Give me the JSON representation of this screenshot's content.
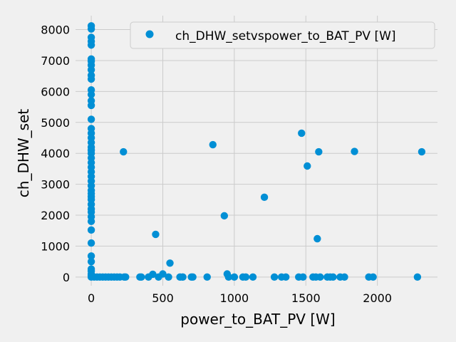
{
  "chart_data": {
    "type": "scatter",
    "title": "",
    "xlabel": "power_to_BAT_PV [W]",
    "ylabel": "ch_DHW_set",
    "xlim": [
      -110,
      2420
    ],
    "ylim": [
      -280,
      8450
    ],
    "xticks": [
      0,
      500,
      1000,
      1500,
      2000
    ],
    "yticks": [
      0,
      1000,
      2000,
      3000,
      4000,
      5000,
      6000,
      7000,
      8000
    ],
    "grid": true,
    "legend_position": "top-right",
    "series": [
      {
        "name": "ch_DHW_setvspower_to_BAT_PV [W]",
        "color": "#008fd5",
        "points": [
          [
            0,
            8120
          ],
          [
            0,
            8020
          ],
          [
            0,
            7750
          ],
          [
            0,
            7620
          ],
          [
            0,
            7500
          ],
          [
            0,
            7050
          ],
          [
            0,
            6980
          ],
          [
            0,
            6850
          ],
          [
            0,
            6700
          ],
          [
            0,
            6520
          ],
          [
            0,
            6400
          ],
          [
            0,
            6050
          ],
          [
            0,
            5900
          ],
          [
            0,
            5700
          ],
          [
            0,
            5550
          ],
          [
            0,
            5100
          ],
          [
            0,
            4800
          ],
          [
            0,
            4650
          ],
          [
            0,
            4500
          ],
          [
            0,
            4350
          ],
          [
            0,
            4200
          ],
          [
            0,
            4100
          ],
          [
            0,
            4000
          ],
          [
            0,
            3850
          ],
          [
            0,
            3700
          ],
          [
            0,
            3550
          ],
          [
            0,
            3400
          ],
          [
            0,
            3250
          ],
          [
            0,
            3100
          ],
          [
            0,
            2950
          ],
          [
            0,
            2800
          ],
          [
            0,
            2700
          ],
          [
            0,
            2600
          ],
          [
            0,
            2500
          ],
          [
            0,
            2350
          ],
          [
            0,
            2200
          ],
          [
            0,
            2100
          ],
          [
            0,
            1950
          ],
          [
            0,
            1800
          ],
          [
            0,
            1520
          ],
          [
            0,
            1100
          ],
          [
            0,
            680
          ],
          [
            0,
            500
          ],
          [
            0,
            260
          ],
          [
            0,
            200
          ],
          [
            0,
            100
          ],
          [
            0,
            50
          ],
          [
            0,
            0
          ],
          [
            20,
            0
          ],
          [
            40,
            0
          ],
          [
            60,
            0
          ],
          [
            80,
            0
          ],
          [
            100,
            0
          ],
          [
            120,
            0
          ],
          [
            140,
            0
          ],
          [
            160,
            0
          ],
          [
            180,
            0
          ],
          [
            200,
            0
          ],
          [
            225,
            4050
          ],
          [
            230,
            0
          ],
          [
            240,
            0
          ],
          [
            340,
            0
          ],
          [
            350,
            0
          ],
          [
            400,
            0
          ],
          [
            430,
            90
          ],
          [
            450,
            1380
          ],
          [
            470,
            0
          ],
          [
            500,
            100
          ],
          [
            540,
            0
          ],
          [
            550,
            450
          ],
          [
            620,
            0
          ],
          [
            640,
            0
          ],
          [
            700,
            0
          ],
          [
            710,
            0
          ],
          [
            810,
            0
          ],
          [
            850,
            4280
          ],
          [
            930,
            1980
          ],
          [
            950,
            100
          ],
          [
            960,
            0
          ],
          [
            1000,
            0
          ],
          [
            1060,
            0
          ],
          [
            1080,
            0
          ],
          [
            1130,
            0
          ],
          [
            1210,
            2580
          ],
          [
            1280,
            0
          ],
          [
            1330,
            0
          ],
          [
            1360,
            0
          ],
          [
            1450,
            0
          ],
          [
            1470,
            4650
          ],
          [
            1480,
            0
          ],
          [
            1510,
            3590
          ],
          [
            1550,
            0
          ],
          [
            1570,
            0
          ],
          [
            1580,
            1240
          ],
          [
            1590,
            4050
          ],
          [
            1600,
            0
          ],
          [
            1650,
            0
          ],
          [
            1670,
            0
          ],
          [
            1690,
            0
          ],
          [
            1740,
            0
          ],
          [
            1770,
            0
          ],
          [
            1840,
            4060
          ],
          [
            1940,
            0
          ],
          [
            1970,
            0
          ],
          [
            2280,
            0
          ],
          [
            2310,
            4050
          ]
        ]
      }
    ]
  }
}
